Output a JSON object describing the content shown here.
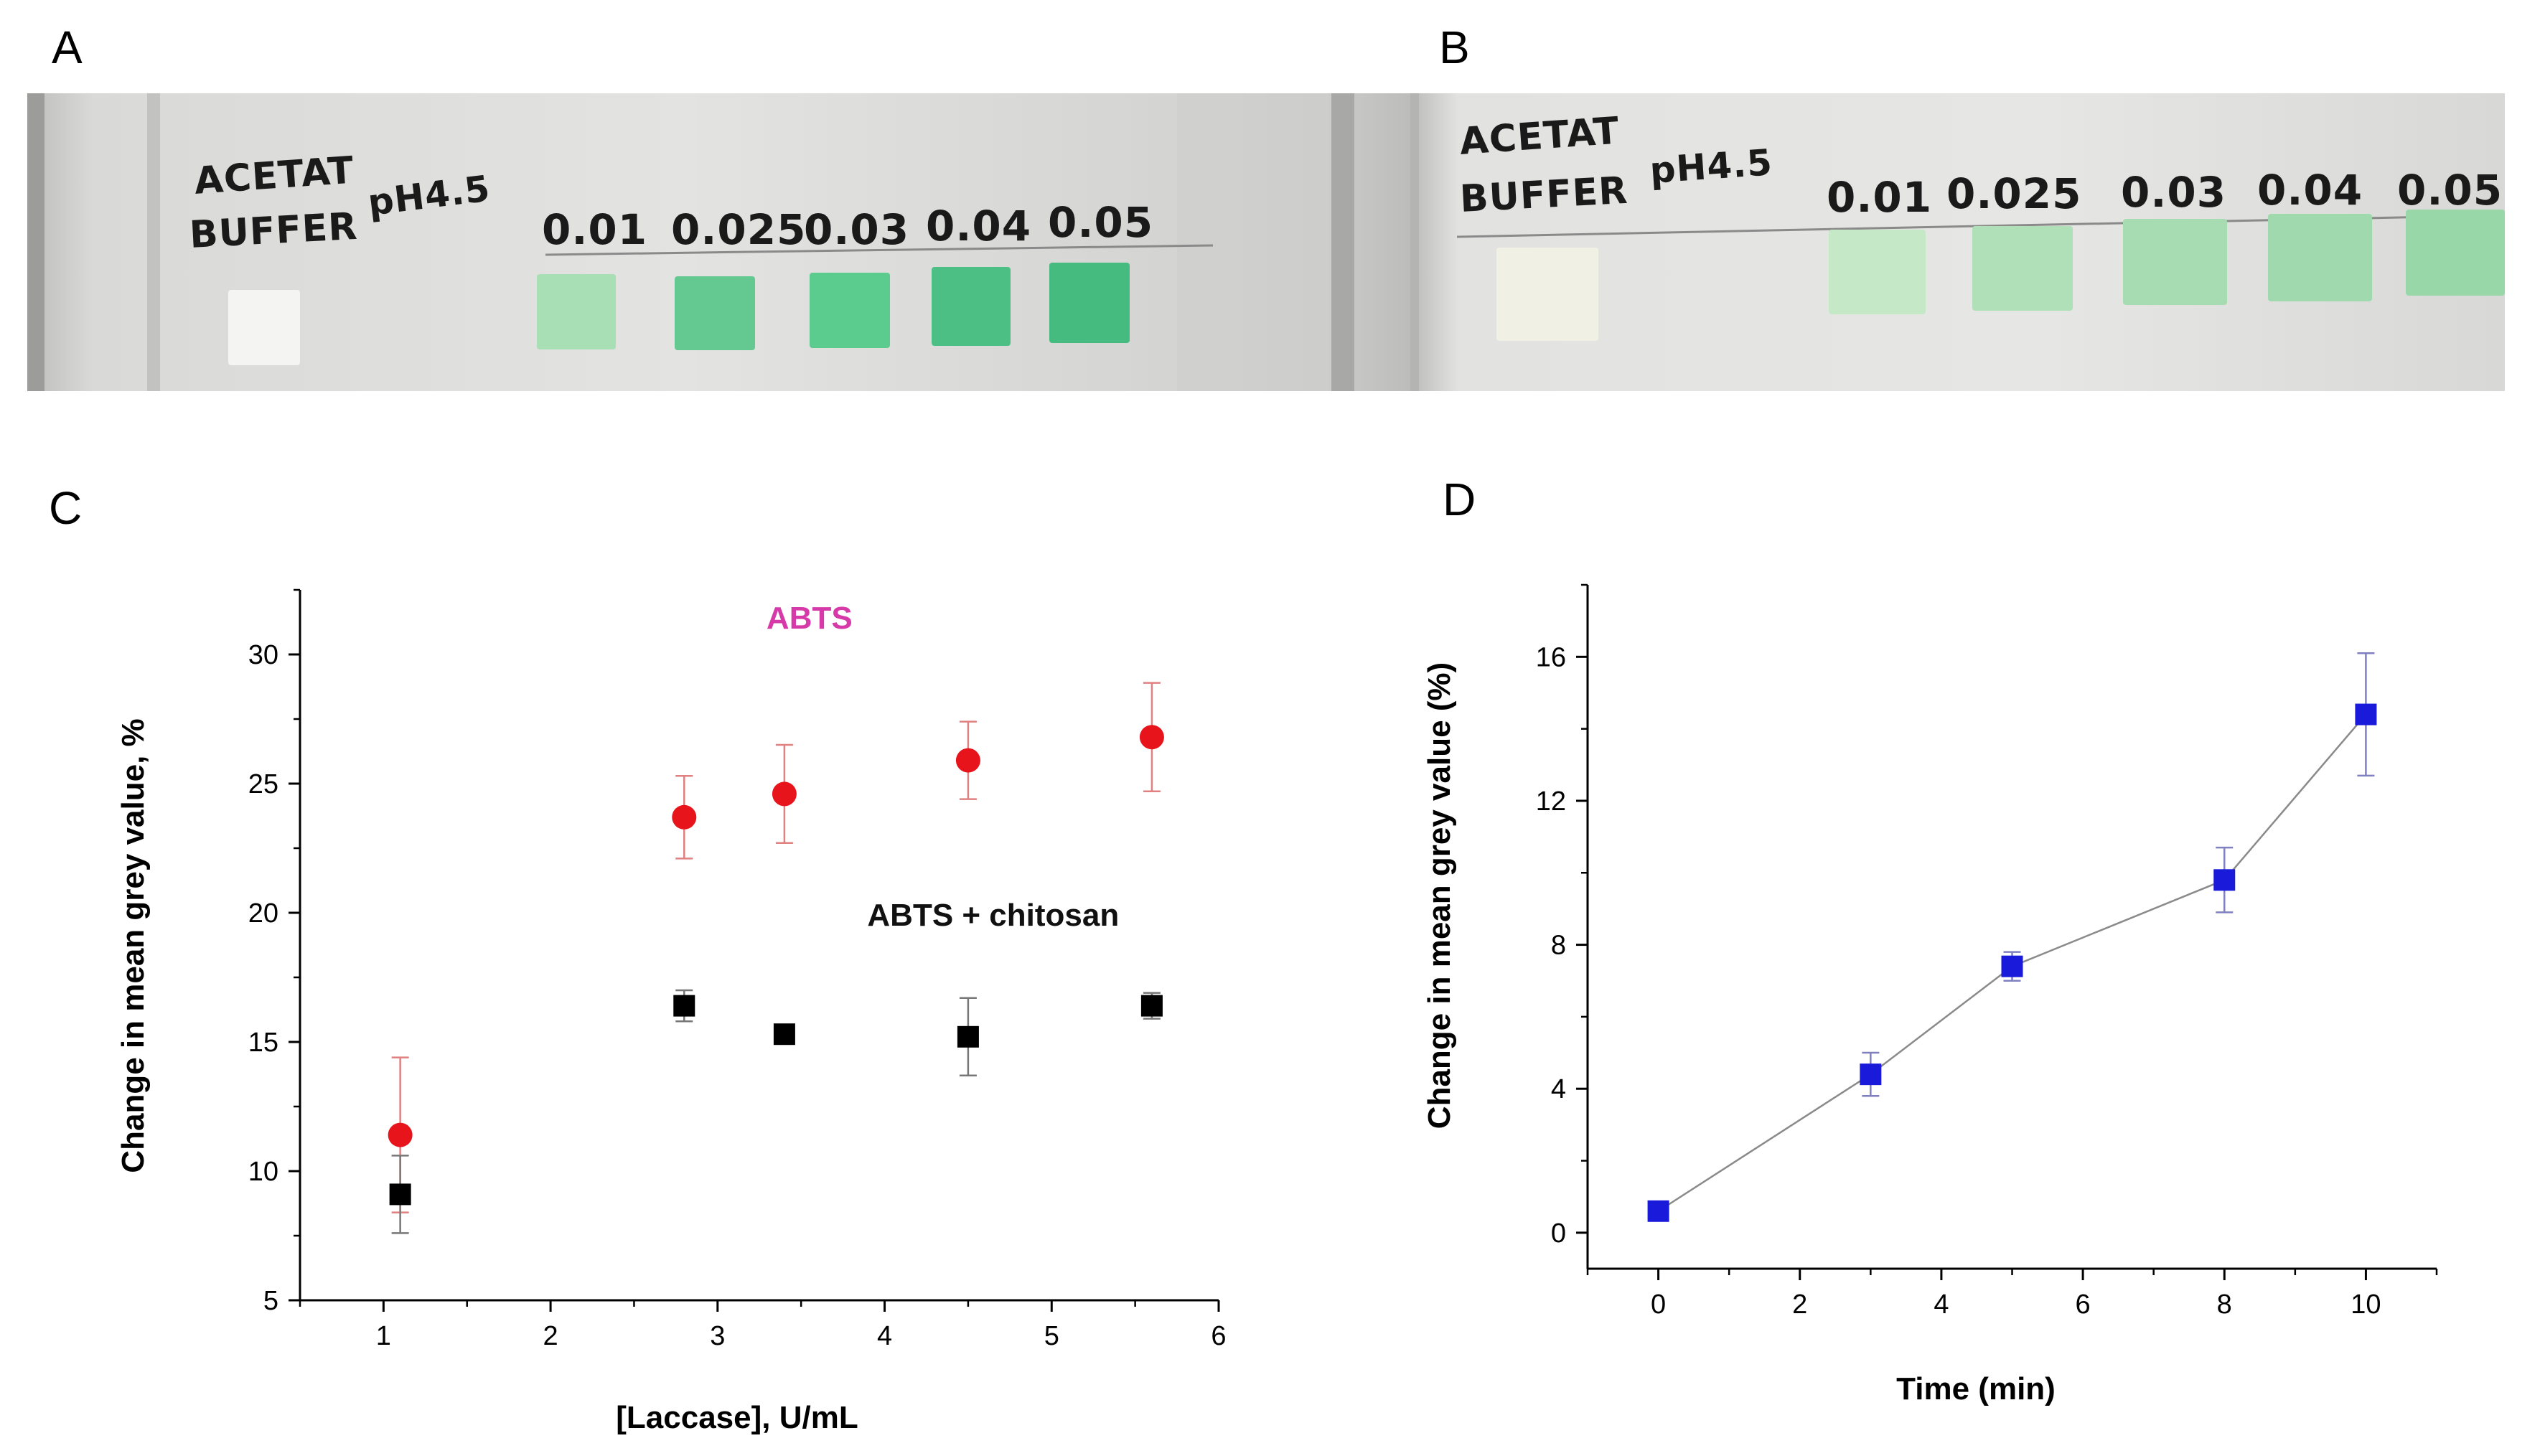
{
  "panels": {
    "A": {
      "letter": "A",
      "label_line1": "ACETAT",
      "label_line2": "BUFFER",
      "ph": "pH4.5",
      "concentrations": [
        "0.01",
        "0.025",
        "0.03",
        "0.04",
        "0.05"
      ],
      "blank_color": "#f4f4f2",
      "swatch_colors": [
        "#a9dfb4",
        "#63c990",
        "#5ccb8e",
        "#4bbf84",
        "#45bb80"
      ],
      "backdrop_color": "#d6d6d4"
    },
    "B": {
      "letter": "B",
      "label_line1": "ACETAT",
      "label_line2": "BUFFER",
      "ph": "pH4.5",
      "concentrations": [
        "0.01",
        "0.025",
        "0.03",
        "0.04",
        "0.05"
      ],
      "blank_color": "#f1f0e4",
      "swatch_colors": [
        "#c5e8c6",
        "#b0e0b8",
        "#a7dcb2",
        "#9fd9ad",
        "#98d7a8"
      ],
      "backdrop_color": "#dcdcda"
    },
    "C": {
      "letter": "C"
    },
    "D": {
      "letter": "D"
    }
  },
  "chart_data": [
    {
      "id": "C",
      "type": "scatter",
      "title": "",
      "xlabel": "[Laccase], U/mL",
      "ylabel": "Change in mean grey value, %",
      "xlim": [
        0.5,
        6
      ],
      "ylim": [
        5,
        32.5
      ],
      "xticks": [
        1,
        2,
        3,
        4,
        5,
        6
      ],
      "yticks": [
        5,
        10,
        15,
        20,
        25,
        30
      ],
      "grid": false,
      "annotations": [
        {
          "text": "ABTS",
          "x": 3.55,
          "y": 31,
          "color": "#d63aa8"
        },
        {
          "text": "ABTS + chitosan",
          "x": 4.65,
          "y": 19.5,
          "color": "#111111"
        }
      ],
      "series": [
        {
          "name": "ABTS",
          "marker": "circle",
          "color": "#e8141b",
          "error_color": "#e08080",
          "x": [
            1.1,
            2.8,
            3.4,
            4.5,
            5.6
          ],
          "y": [
            11.4,
            23.7,
            24.6,
            25.9,
            26.8
          ],
          "yerr": [
            3.0,
            1.6,
            1.9,
            1.5,
            2.1
          ]
        },
        {
          "name": "ABTS + chitosan",
          "marker": "square",
          "color": "#000000",
          "error_color": "#777777",
          "x": [
            1.1,
            2.8,
            3.4,
            4.5,
            5.6
          ],
          "y": [
            9.1,
            16.4,
            15.3,
            15.2,
            16.4
          ],
          "yerr": [
            1.5,
            0.6,
            0.1,
            1.5,
            0.5
          ]
        }
      ]
    },
    {
      "id": "D",
      "type": "line",
      "title": "",
      "xlabel": "Time (min)",
      "ylabel": "Change in mean grey value (%)",
      "xlim": [
        -1,
        11
      ],
      "ylim": [
        -1,
        18
      ],
      "xticks": [
        0,
        2,
        4,
        6,
        8,
        10
      ],
      "yticks": [
        0,
        4,
        8,
        12,
        16
      ],
      "grid": false,
      "annotations": [],
      "series": [
        {
          "name": "Change in mean grey value",
          "marker": "square",
          "color": "#1a1adb",
          "line_color": "#8a8a8a",
          "error_color": "#8080c0",
          "x": [
            0,
            3,
            5,
            8,
            10
          ],
          "y": [
            0.6,
            4.4,
            7.4,
            9.8,
            14.4
          ],
          "yerr": [
            0.1,
            0.6,
            0.4,
            0.9,
            1.7
          ]
        }
      ]
    }
  ]
}
